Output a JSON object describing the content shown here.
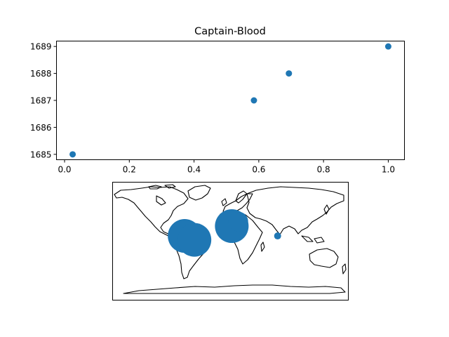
{
  "chart_data": [
    {
      "type": "scatter",
      "title": "Captain-Blood",
      "xlabel": "",
      "ylabel": "",
      "xlim": [
        -0.025,
        1.05
      ],
      "ylim": [
        1684.8,
        1689.2
      ],
      "xticks": [
        "0.0",
        "0.2",
        "0.4",
        "0.6",
        "0.8",
        "1.0"
      ],
      "yticks": [
        "1685",
        "1686",
        "1687",
        "1688",
        "1689"
      ],
      "grid": false,
      "color": "#1f77b4",
      "points": [
        {
          "x": 0.025,
          "y": 1685
        },
        {
          "x": 0.585,
          "y": 1687
        },
        {
          "x": 0.693,
          "y": 1688
        },
        {
          "x": 1.0,
          "y": 1689
        }
      ]
    },
    {
      "type": "scatter",
      "projection": "world map (plate carree) with coastlines",
      "color": "#1f77b4",
      "markers": [
        {
          "lon": -70,
          "lat": 8,
          "size": "large"
        },
        {
          "lon": -55,
          "lat": 2,
          "size": "large"
        },
        {
          "lon": 2,
          "lat": 23,
          "size": "large"
        },
        {
          "lon": 12,
          "lat": 30,
          "size": "medium"
        },
        {
          "lon": 72,
          "lat": 8,
          "size": "small"
        }
      ]
    }
  ]
}
